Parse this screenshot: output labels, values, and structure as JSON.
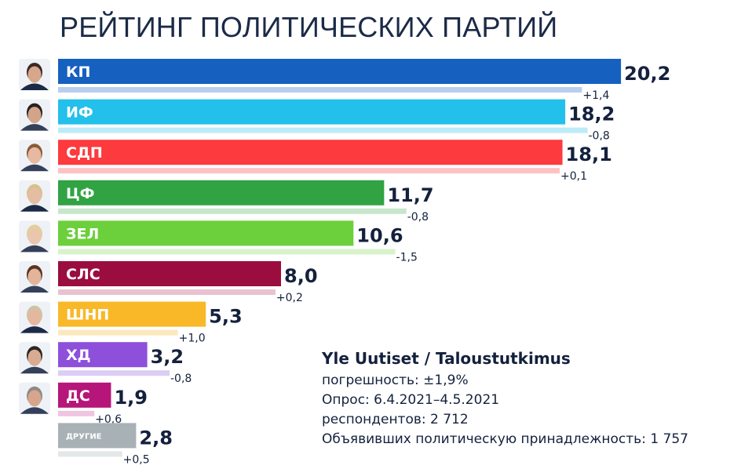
{
  "title": "РЕЙТИНГ ПОЛИТИЧЕСКИХ ПАРТИЙ",
  "chart_data": {
    "type": "bar",
    "orientation": "horizontal",
    "title": "РЕЙТИНГ ПОЛИТИЧЕСКИХ ПАРТИЙ",
    "categories": [
      "КП",
      "ИФ",
      "СДП",
      "ЦФ",
      "ЗЕЛ",
      "СЛС",
      "ШНП",
      "ХД",
      "ДС",
      "ДРУГИЕ"
    ],
    "values": [
      20.2,
      18.2,
      18.1,
      11.7,
      10.6,
      8.0,
      5.3,
      3.2,
      1.9,
      2.8
    ],
    "value_labels": [
      "20,2",
      "18,2",
      "18,1",
      "11,7",
      "10,6",
      "8,0",
      "5,3",
      "3,2",
      "1,9",
      "2,8"
    ],
    "changes": [
      "+1,4",
      "-0,8",
      "+0,1",
      "-0,8",
      "-1,5",
      "+0,2",
      "+1,0",
      "-0,8",
      "+0,6",
      "+0,5"
    ],
    "previous_values": [
      18.8,
      19.0,
      18.0,
      12.5,
      12.1,
      7.8,
      4.3,
      4.0,
      1.3,
      2.3
    ],
    "colors": [
      "#1660c0",
      "#22c0ea",
      "#fd3a3e",
      "#31a343",
      "#6ccf3c",
      "#9a0d3e",
      "#f8b828",
      "#8e4fdb",
      "#b6157a",
      "#a8b1b5"
    ],
    "previous_colors": [
      "#b9cfee",
      "#bdebf8",
      "#fec2c4",
      "#c7e6cb",
      "#d8f3ca",
      "#e9c2cf",
      "#fde8bd",
      "#dccdf5",
      "#f0c4e0",
      "#e4e7e8"
    ],
    "xlim": [
      0,
      21
    ],
    "grid": false,
    "legend": "none"
  },
  "source": {
    "title": "Yle Uutiset / Taloustutkimus",
    "lines": [
      "погрешность:  ±1,9%",
      "Опрос: 6.4.2021–4.5.2021",
      "респондентов: 2 712",
      "Объявивших политическую принадлежность: 1 757"
    ]
  },
  "icons": [
    "avatar-icon"
  ]
}
